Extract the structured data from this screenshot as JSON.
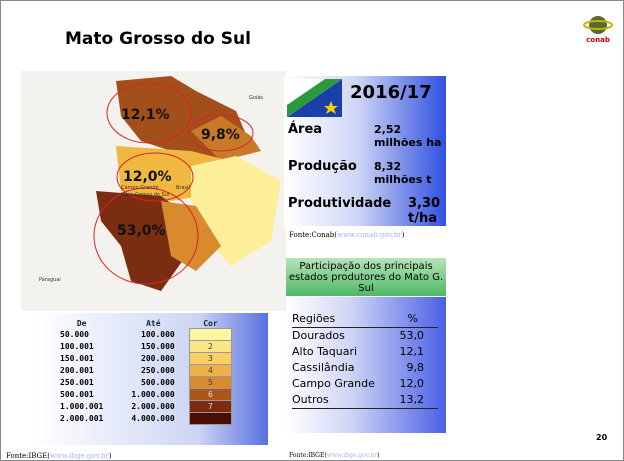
{
  "title": "Mato Grosso do Sul",
  "map": {
    "labels": [
      "12,1%",
      "9,8%",
      "12,0%",
      "53,0%"
    ],
    "places": [
      "Goiás",
      "Campo Grande",
      "Mato Grosso do Sul",
      "Brasil",
      "Paraguai"
    ]
  },
  "info": {
    "year": "2016/17",
    "rows": [
      {
        "label": "Área",
        "value": "2,52 milhões ha"
      },
      {
        "label": "Produção",
        "value": "8,32 milhões t"
      },
      {
        "label": "Produtividade",
        "value": "3,30 t/ha"
      }
    ],
    "source": {
      "prefix": "Fonte:Conab(",
      "link": "www.conab.gov.br",
      "suffix": ")"
    }
  },
  "participation": {
    "heading": "Participação dos principais estados produtores do Mato G. Sul",
    "header": [
      "Regiões",
      "%"
    ],
    "rows": [
      [
        "Dourados",
        "53,0"
      ],
      [
        "Alto Taquari",
        "12,1"
      ],
      [
        "Cassilândia",
        "9,8"
      ],
      [
        "Campo Grande",
        "12,0"
      ],
      [
        "Outros",
        "13,2"
      ]
    ],
    "source": {
      "prefix": "Fonte:IBGE(",
      "link": "www.ibge.gov.br",
      "suffix": ")"
    }
  },
  "legend": {
    "header": [
      "De",
      "Até",
      "Cor"
    ],
    "rows": [
      {
        "from": "50.000",
        "to": "100.000",
        "color": "#fff6a0"
      },
      {
        "from": "100.001",
        "to": "150.000",
        "cor": "2",
        "color": "#fde58a"
      },
      {
        "from": "150.001",
        "to": "200.000",
        "cor": "3",
        "color": "#f9cf63"
      },
      {
        "from": "200.001",
        "to": "250.000",
        "cor": "4",
        "color": "#eeb04a"
      },
      {
        "from": "250.001",
        "to": "500.000",
        "cor": "5",
        "color": "#d98a2e"
      },
      {
        "from": "500.001",
        "to": "1.000.000",
        "cor": "6",
        "color": "#a9571c"
      },
      {
        "from": "1.000.001",
        "to": "2.000.000",
        "cor": "7",
        "color": "#7a2b10"
      },
      {
        "from": "2.000.001",
        "to": "4.000.000",
        "color": "#4a0d06"
      }
    ],
    "source": {
      "prefix": "Fonte:IBGE(",
      "link": "www.ibge.gov.br",
      "suffix": ")"
    }
  },
  "page_number": "20"
}
